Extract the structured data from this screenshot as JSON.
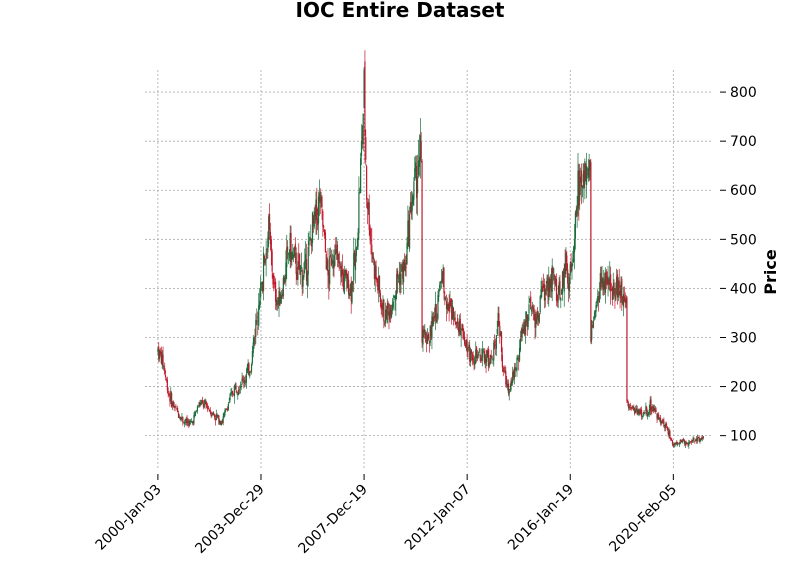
{
  "chart_data": {
    "type": "candlestick",
    "title": "IOC Entire Dataset",
    "xlabel": "",
    "ylabel": "Price",
    "grid": true,
    "ylim": [
      30,
      845
    ],
    "y_ticks": [
      100,
      200,
      300,
      400,
      500,
      600,
      700,
      800
    ],
    "x_ticks": [
      {
        "label": "2000-Jan-03",
        "year": 2000.0
      },
      {
        "label": "2003-Dec-29",
        "year": 2004.0
      },
      {
        "label": "2007-Dec-19",
        "year": 2008.0
      },
      {
        "label": "2012-Jan-07",
        "year": 2012.0
      },
      {
        "label": "2016-Jan-19",
        "year": 2016.0
      },
      {
        "label": "2020-Feb-05",
        "year": 2020.0
      }
    ],
    "xlim": [
      1999.5,
      2021.5
    ],
    "up_color": "#1a6b3a",
    "down_color": "#c0182a",
    "wick_color": "#333333",
    "approx_close_path": [
      [
        2000.0,
        275
      ],
      [
        2000.2,
        250
      ],
      [
        2000.4,
        190
      ],
      [
        2000.6,
        160
      ],
      [
        2000.8,
        145
      ],
      [
        2001.0,
        130
      ],
      [
        2001.3,
        125
      ],
      [
        2001.6,
        165
      ],
      [
        2001.9,
        160
      ],
      [
        2002.2,
        140
      ],
      [
        2002.5,
        130
      ],
      [
        2002.8,
        175
      ],
      [
        2003.0,
        200
      ],
      [
        2003.3,
        210
      ],
      [
        2003.6,
        240
      ],
      [
        2003.8,
        330
      ],
      [
        2003.95,
        400
      ],
      [
        2004.1,
        450
      ],
      [
        2004.3,
        520
      ],
      [
        2004.5,
        400
      ],
      [
        2004.7,
        370
      ],
      [
        2004.9,
        420
      ],
      [
        2005.1,
        480
      ],
      [
        2005.4,
        440
      ],
      [
        2005.7,
        430
      ],
      [
        2006.0,
        520
      ],
      [
        2006.3,
        580
      ],
      [
        2006.6,
        420
      ],
      [
        2006.8,
        480
      ],
      [
        2007.0,
        450
      ],
      [
        2007.2,
        420
      ],
      [
        2007.5,
        400
      ],
      [
        2007.7,
        470
      ],
      [
        2007.9,
        680
      ],
      [
        2008.0,
        800
      ],
      [
        2008.1,
        600
      ],
      [
        2008.3,
        480
      ],
      [
        2008.5,
        410
      ],
      [
        2008.8,
        340
      ],
      [
        2009.0,
        360
      ],
      [
        2009.3,
        420
      ],
      [
        2009.6,
        440
      ],
      [
        2009.8,
        560
      ],
      [
        2010.0,
        620
      ],
      [
        2010.15,
        680
      ],
      [
        2010.25,
        300
      ],
      [
        2010.5,
        300
      ],
      [
        2010.8,
        350
      ],
      [
        2011.0,
        430
      ],
      [
        2011.3,
        360
      ],
      [
        2011.6,
        340
      ],
      [
        2011.9,
        300
      ],
      [
        2012.1,
        270
      ],
      [
        2012.4,
        255
      ],
      [
        2012.7,
        265
      ],
      [
        2013.0,
        255
      ],
      [
        2013.2,
        350
      ],
      [
        2013.4,
        230
      ],
      [
        2013.6,
        200
      ],
      [
        2013.9,
        240
      ],
      [
        2014.1,
        300
      ],
      [
        2014.4,
        360
      ],
      [
        2014.7,
        340
      ],
      [
        2015.0,
        400
      ],
      [
        2015.3,
        420
      ],
      [
        2015.6,
        380
      ],
      [
        2015.8,
        440
      ],
      [
        2016.0,
        420
      ],
      [
        2016.3,
        600
      ],
      [
        2016.5,
        640
      ],
      [
        2016.8,
        300
      ],
      [
        2016.9,
        320
      ],
      [
        2017.2,
        420
      ],
      [
        2017.5,
        390
      ],
      [
        2017.8,
        410
      ],
      [
        2018.0,
        390
      ],
      [
        2018.2,
        170
      ],
      [
        2018.5,
        150
      ],
      [
        2018.8,
        145
      ],
      [
        2019.1,
        160
      ],
      [
        2019.4,
        140
      ],
      [
        2019.7,
        120
      ],
      [
        2020.0,
        80
      ],
      [
        2020.3,
        90
      ],
      [
        2020.6,
        85
      ],
      [
        2020.9,
        95
      ],
      [
        2021.2,
        90
      ]
    ]
  }
}
